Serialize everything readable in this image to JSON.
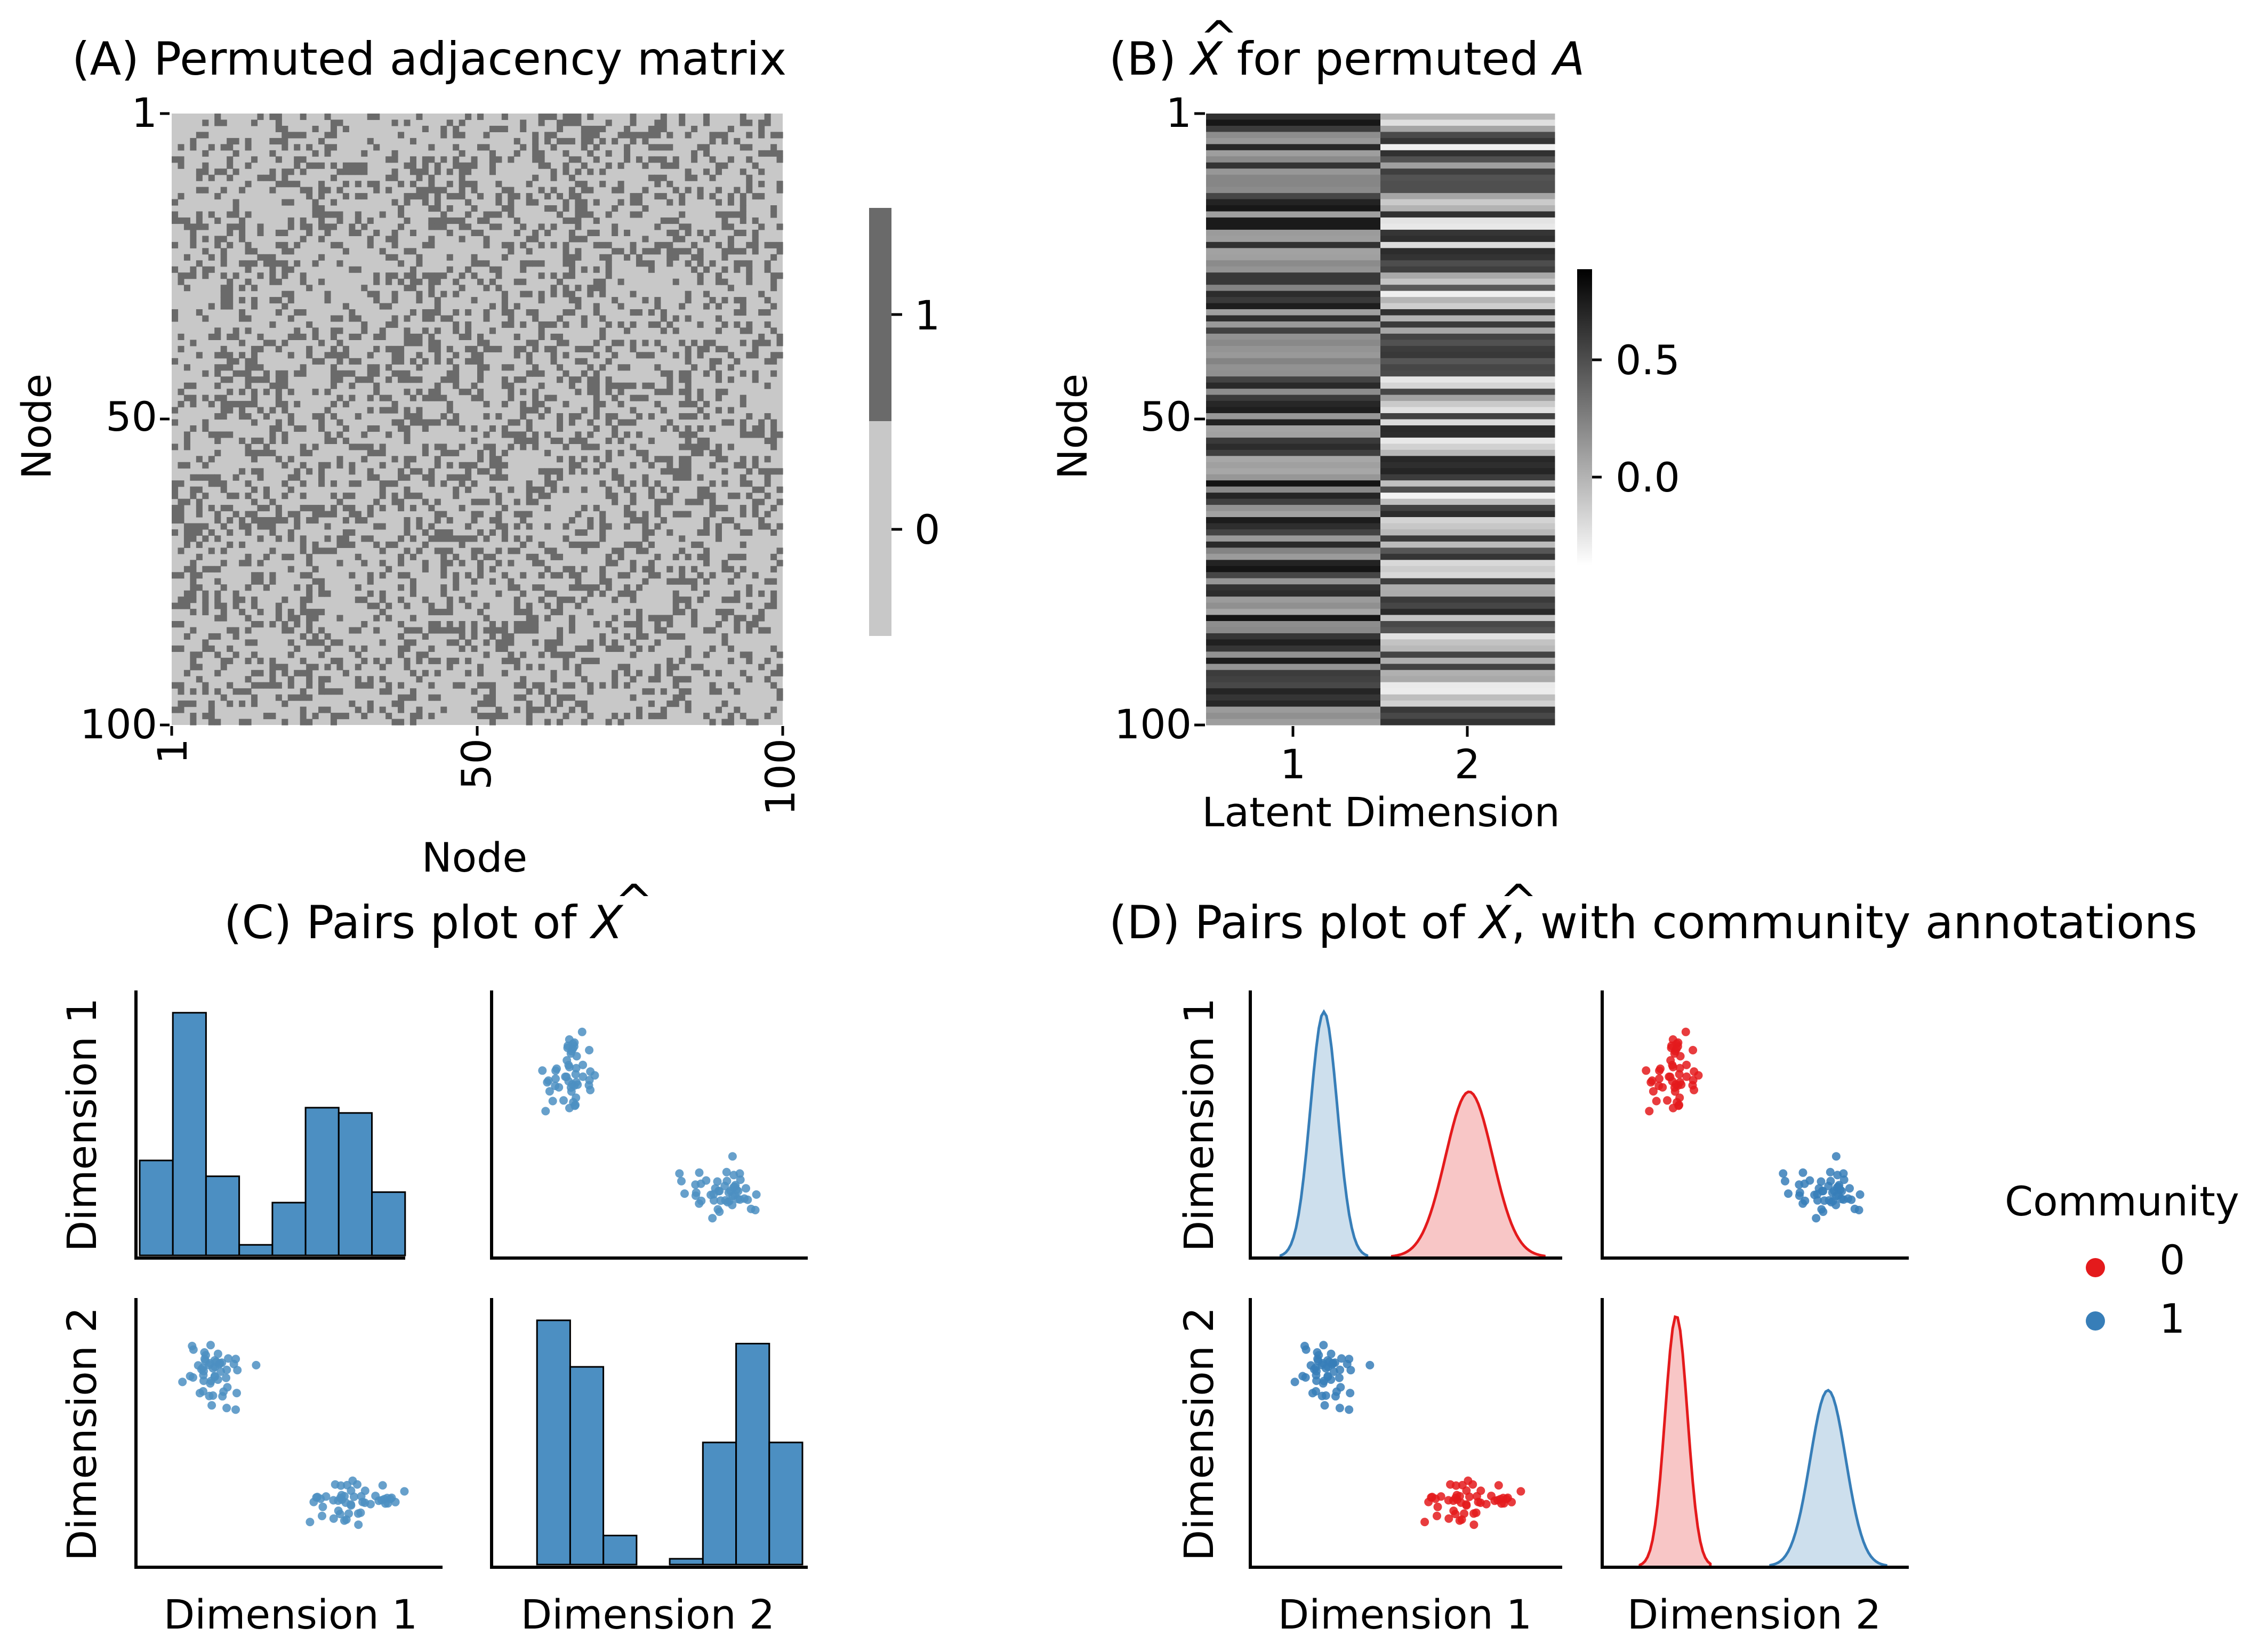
{
  "panels": {
    "A": {
      "title": "(A) Permuted adjacency matrix",
      "xlabel": "Node",
      "ylabel": "Node"
    },
    "B": {
      "title_prefix": "(B) ",
      "title_hat": "X",
      "title_suffix": " for permuted ",
      "title_var": "A",
      "xlabel": "Latent Dimension",
      "ylabel": "Node"
    },
    "C": {
      "title_prefix": "(C) Pairs plot of ",
      "title_hat": "X"
    },
    "D": {
      "title_prefix": "(D) Pairs plot of ",
      "title_hat": "X",
      "title_suffix": ", with community annotations"
    }
  },
  "legend": {
    "title": "Community",
    "entries": [
      {
        "label": "0",
        "color": "#e41a1c"
      },
      {
        "label": "1",
        "color": "#377eb8"
      }
    ]
  },
  "colors": {
    "blue": "#4c8fc2",
    "blue_edge": "#3674b4",
    "red": "#e41a1c",
    "gray_edge": "#6a6a6a",
    "gray_empty": "#c8c8c8"
  },
  "chart_data": [
    {
      "id": "A",
      "type": "heatmap",
      "title": "(A) Permuted adjacency matrix",
      "xlabel": "Node",
      "ylabel": "Node",
      "n_nodes": 100,
      "edge_probability_approx": 0.3,
      "x_ticks": [
        "1",
        "50",
        "100"
      ],
      "y_ticks": [
        "1",
        "50",
        "100"
      ],
      "values": [
        0,
        1
      ],
      "colorbar": {
        "ticks": [
          "0",
          "1"
        ],
        "colors": {
          "0": "#c8c8c8",
          "1": "#6a6a6a"
        }
      }
    },
    {
      "id": "B",
      "type": "heatmap",
      "xlabel": "Latent Dimension",
      "ylabel": "Node",
      "x_ticks": [
        "1",
        "2"
      ],
      "y_ticks": [
        "1",
        "50",
        "100"
      ],
      "colorbar": {
        "ticks": [
          "0.0",
          "0.5"
        ],
        "range": [
          -0.25,
          0.85
        ]
      },
      "row_values_approx": [
        [
          0.68,
          -0.05
        ],
        [
          0.62,
          0.05
        ],
        [
          0.74,
          -0.15
        ],
        [
          0.57,
          0.12
        ],
        [
          0.7,
          -0.02
        ],
        [
          0.6,
          0.15
        ],
        [
          0.66,
          -0.18
        ],
        [
          0.77,
          0.02
        ],
        [
          0.55,
          -0.08
        ],
        [
          0.63,
          0.1
        ],
        [
          0.72,
          -0.12
        ],
        [
          0.58,
          0.06
        ],
        [
          0.69,
          -0.2
        ],
        [
          0.61,
          0.0
        ],
        [
          0.75,
          0.08
        ],
        [
          0.56,
          -0.14
        ],
        [
          0.67,
          0.04
        ],
        [
          0.73,
          -0.06
        ],
        [
          0.59,
          0.14
        ],
        [
          0.64,
          -0.1
        ],
        [
          0.71,
          0.01
        ],
        [
          0.54,
          -0.16
        ],
        [
          0.66,
          0.11
        ],
        [
          0.76,
          -0.03
        ],
        [
          0.6,
          0.07
        ],
        [
          0.68,
          -0.19
        ],
        [
          0.62,
          0.03
        ],
        [
          0.7,
          -0.09
        ],
        [
          0.57,
          0.13
        ],
        [
          0.65,
          -0.01
        ],
        [
          0.74,
          -0.13
        ],
        [
          0.59,
          0.09
        ],
        [
          0.67,
          -0.07
        ],
        [
          0.63,
          0.16
        ],
        [
          0.72,
          -0.04
        ],
        [
          0.56,
          0.05
        ],
        [
          0.69,
          -0.17
        ],
        [
          0.61,
          0.12
        ],
        [
          0.75,
          -0.11
        ],
        [
          0.58,
          0.02
        ],
        [
          0.66,
          -0.05
        ],
        [
          0.73,
          0.1
        ],
        [
          0.6,
          -0.15
        ],
        [
          0.64,
          0.06
        ],
        [
          0.7,
          -0.08
        ],
        [
          0.55,
          0.14
        ],
        [
          0.68,
          -0.02
        ],
        [
          0.77,
          0.0
        ],
        [
          0.62,
          -0.12
        ],
        [
          0.65,
          0.08
        ],
        [
          0.22,
          0.55
        ],
        [
          0.18,
          0.62
        ],
        [
          0.26,
          0.5
        ],
        [
          0.15,
          0.66
        ],
        [
          0.2,
          0.58
        ],
        [
          0.28,
          0.48
        ],
        [
          0.17,
          0.64
        ],
        [
          0.24,
          0.53
        ],
        [
          0.19,
          0.6
        ],
        [
          0.13,
          0.68
        ],
        [
          0.25,
          0.51
        ],
        [
          0.21,
          0.57
        ],
        [
          0.16,
          0.63
        ],
        [
          0.27,
          0.49
        ],
        [
          0.18,
          0.61
        ],
        [
          0.23,
          0.54
        ],
        [
          0.14,
          0.67
        ],
        [
          0.2,
          0.59
        ],
        [
          0.26,
          0.52
        ],
        [
          0.17,
          0.65
        ],
        [
          0.22,
          0.56
        ],
        [
          0.19,
          0.62
        ],
        [
          0.28,
          0.47
        ],
        [
          0.15,
          0.66
        ],
        [
          0.24,
          0.55
        ],
        [
          0.21,
          0.58
        ],
        [
          0.16,
          0.64
        ],
        [
          0.25,
          0.5
        ],
        [
          0.18,
          0.6
        ],
        [
          0.23,
          0.53
        ],
        [
          0.13,
          0.69
        ],
        [
          0.27,
          0.51
        ],
        [
          0.2,
          0.57
        ],
        [
          0.17,
          0.63
        ],
        [
          0.22,
          0.56
        ],
        [
          0.26,
          0.49
        ],
        [
          0.19,
          0.61
        ],
        [
          0.14,
          0.67
        ],
        [
          0.24,
          0.54
        ],
        [
          0.21,
          0.59
        ],
        [
          0.16,
          0.65
        ],
        [
          0.28,
          0.48
        ],
        [
          0.18,
          0.62
        ],
        [
          0.23,
          0.55
        ],
        [
          0.2,
          0.58
        ],
        [
          0.15,
          0.66
        ],
        [
          0.25,
          0.52
        ],
        [
          0.22,
          0.57
        ],
        [
          0.17,
          0.64
        ],
        [
          0.19,
          0.6
        ]
      ]
    },
    {
      "id": "C",
      "type": "scatter",
      "title": "(C) Pairs plot of X-hat",
      "variables": [
        "Dimension 1",
        "Dimension 2"
      ],
      "diagonal": "histogram",
      "dim1_range": [
        0.0,
        0.9
      ],
      "dim2_range": [
        -0.6,
        0.75
      ],
      "hist_dim1": {
        "bin_edges": [
          0.0,
          0.1,
          0.2,
          0.3,
          0.4,
          0.5,
          0.6,
          0.7,
          0.8,
          0.9
        ],
        "counts": [
          18,
          46,
          15,
          2,
          10,
          28,
          27,
          12,
          0
        ]
      },
      "hist_dim2": {
        "bin_edges": [
          -0.6,
          -0.45,
          -0.3,
          -0.15,
          0.0,
          0.15,
          0.3,
          0.45,
          0.6,
          0.75
        ],
        "counts": [
          0,
          42,
          34,
          5,
          0,
          1,
          21,
          38,
          21
        ]
      }
    },
    {
      "id": "D",
      "type": "scatter",
      "title": "(D) Pairs plot of X-hat, with community annotations",
      "variables": [
        "Dimension 1",
        "Dimension 2"
      ],
      "diagonal": "kde",
      "dim1_range": [
        0.0,
        0.9
      ],
      "dim2_range": [
        -0.6,
        0.75
      ],
      "legend_title": "Community",
      "series": [
        {
          "name": "0",
          "color": "#e41a1c",
          "dim1_mean": 0.64,
          "dim1_sd": 0.07,
          "dim2_mean": -0.28,
          "dim2_sd": 0.05,
          "n": 50
        },
        {
          "name": "1",
          "color": "#377eb8",
          "dim1_mean": 0.21,
          "dim1_sd": 0.04,
          "dim2_mean": 0.4,
          "dim2_sd": 0.08,
          "n": 50
        }
      ]
    }
  ]
}
